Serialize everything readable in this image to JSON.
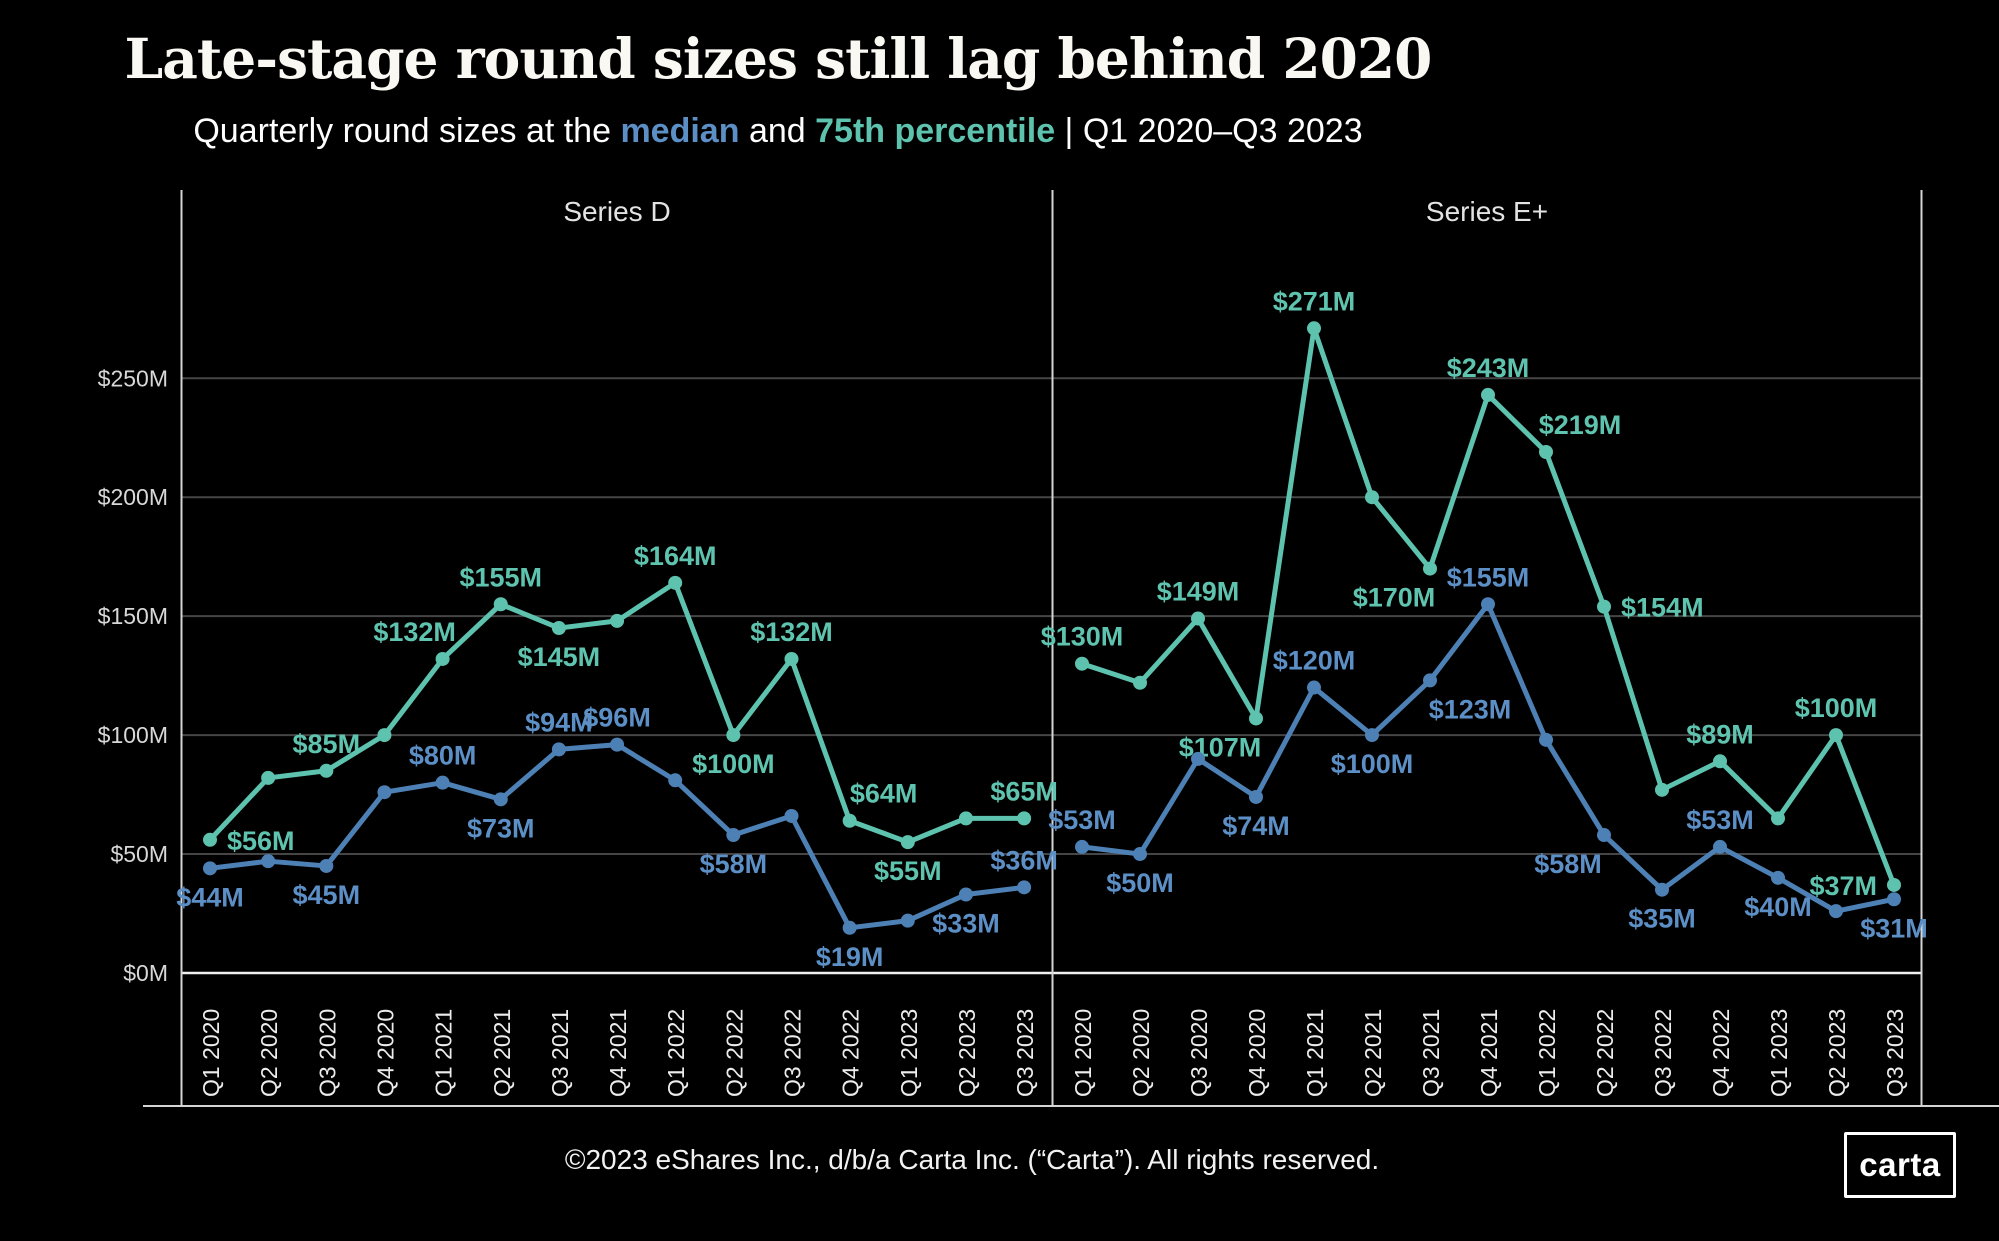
{
  "header": {
    "title": "Late-stage round sizes still lag behind 2020",
    "subtitle_prefix": "Quarterly round sizes at the ",
    "subtitle_median_word": "median",
    "subtitle_and": " and ",
    "subtitle_p75_word": "75th percentile",
    "subtitle_suffix": " | Q1 2020–Q3 2023"
  },
  "colors": {
    "median_line": "#4D81B5",
    "median_label": "#5C8FC5",
    "p75_line": "#5EC3AE",
    "p75_label": "#5FC4AF",
    "grid": "#454545",
    "frame": "#D5D5D5",
    "baseline": "#F0F0F0",
    "y_tick_text": "#D8D8D8",
    "x_tick_text": "#ECECEC",
    "panel_title_text": "#E3E3E3",
    "background": "#000000"
  },
  "y_axis": {
    "tick_labels": [
      "$0M",
      "$50M",
      "$100M",
      "$150M",
      "$200M",
      "$250M"
    ],
    "tick_values": [
      0,
      50,
      100,
      150,
      200,
      250
    ],
    "ylim": [
      0,
      329
    ],
    "grid": "on"
  },
  "chart_data": [
    {
      "type": "line",
      "panel_title": "Series D",
      "categories": [
        "Q1 2020",
        "Q2 2020",
        "Q3 2020",
        "Q4 2020",
        "Q1 2021",
        "Q2 2021",
        "Q3 2021",
        "Q4 2021",
        "Q1 2022",
        "Q2 2022",
        "Q3 2022",
        "Q4 2022",
        "Q1 2023",
        "Q2 2023",
        "Q3 2023"
      ],
      "series": [
        {
          "name": "75th percentile",
          "values": [
            56,
            82,
            85,
            100,
            132,
            155,
            145,
            148,
            164,
            100,
            132,
            64,
            55,
            65,
            65
          ],
          "labels": [
            {
              "i": 0,
              "text": "$56M",
              "pos": "right"
            },
            {
              "i": 2,
              "text": "$85M",
              "pos": "above"
            },
            {
              "i": 4,
              "text": "$132M",
              "pos": "above-left"
            },
            {
              "i": 5,
              "text": "$155M",
              "pos": "above"
            },
            {
              "i": 6,
              "text": "$145M",
              "pos": "below"
            },
            {
              "i": 8,
              "text": "$164M",
              "pos": "above"
            },
            {
              "i": 9,
              "text": "$100M",
              "pos": "below"
            },
            {
              "i": 10,
              "text": "$132M",
              "pos": "above"
            },
            {
              "i": 11,
              "text": "$64M",
              "pos": "above-right"
            },
            {
              "i": 12,
              "text": "$55M",
              "pos": "below"
            },
            {
              "i": 14,
              "text": "$65M",
              "pos": "above"
            }
          ]
        },
        {
          "name": "median",
          "values": [
            44,
            47,
            45,
            76,
            80,
            73,
            94,
            96,
            81,
            58,
            66,
            19,
            22,
            33,
            36
          ],
          "labels": [
            {
              "i": 0,
              "text": "$44M",
              "pos": "below"
            },
            {
              "i": 2,
              "text": "$45M",
              "pos": "below"
            },
            {
              "i": 4,
              "text": "$80M",
              "pos": "above"
            },
            {
              "i": 5,
              "text": "$73M",
              "pos": "below"
            },
            {
              "i": 6,
              "text": "$94M",
              "pos": "above"
            },
            {
              "i": 7,
              "text": "$96M",
              "pos": "above"
            },
            {
              "i": 9,
              "text": "$58M",
              "pos": "below"
            },
            {
              "i": 11,
              "text": "$19M",
              "pos": "below"
            },
            {
              "i": 13,
              "text": "$33M",
              "pos": "below"
            },
            {
              "i": 14,
              "text": "$36M",
              "pos": "above"
            }
          ]
        }
      ]
    },
    {
      "type": "line",
      "panel_title": "Series E+",
      "categories": [
        "Q1 2020",
        "Q2 2020",
        "Q3 2020",
        "Q4 2020",
        "Q1 2021",
        "Q2 2021",
        "Q3 2021",
        "Q4 2021",
        "Q1 2022",
        "Q2 2022",
        "Q3 2022",
        "Q4 2022",
        "Q1 2023",
        "Q2 2023",
        "Q3 2023"
      ],
      "series": [
        {
          "name": "75th percentile",
          "values": [
            130,
            122,
            149,
            107,
            271,
            200,
            170,
            243,
            219,
            154,
            77,
            89,
            65,
            100,
            37
          ],
          "labels": [
            {
              "i": 0,
              "text": "$130M",
              "pos": "above"
            },
            {
              "i": 2,
              "text": "$149M",
              "pos": "above"
            },
            {
              "i": 3,
              "text": "$107M",
              "pos": "below-left"
            },
            {
              "i": 4,
              "text": "$271M",
              "pos": "above"
            },
            {
              "i": 6,
              "text": "$170M",
              "pos": "below-left"
            },
            {
              "i": 7,
              "text": "$243M",
              "pos": "above"
            },
            {
              "i": 8,
              "text": "$219M",
              "pos": "above-right"
            },
            {
              "i": 9,
              "text": "$154M",
              "pos": "right"
            },
            {
              "i": 11,
              "text": "$89M",
              "pos": "above"
            },
            {
              "i": 13,
              "text": "$100M",
              "pos": "above"
            },
            {
              "i": 14,
              "text": "$37M",
              "pos": "left"
            }
          ]
        },
        {
          "name": "median",
          "values": [
            53,
            50,
            90,
            74,
            120,
            100,
            123,
            155,
            98,
            58,
            35,
            53,
            40,
            26,
            31
          ],
          "labels": [
            {
              "i": 0,
              "text": "$53M",
              "pos": "above"
            },
            {
              "i": 1,
              "text": "$50M",
              "pos": "below"
            },
            {
              "i": 3,
              "text": "$74M",
              "pos": "below"
            },
            {
              "i": 4,
              "text": "$120M",
              "pos": "above"
            },
            {
              "i": 5,
              "text": "$100M",
              "pos": "below"
            },
            {
              "i": 6,
              "text": "$123M",
              "pos": "below-right"
            },
            {
              "i": 7,
              "text": "$155M",
              "pos": "above"
            },
            {
              "i": 9,
              "text": "$58M",
              "pos": "below-left"
            },
            {
              "i": 10,
              "text": "$35M",
              "pos": "below"
            },
            {
              "i": 11,
              "text": "$53M",
              "pos": "above"
            },
            {
              "i": 12,
              "text": "$40M",
              "pos": "below"
            },
            {
              "i": 14,
              "text": "$31M",
              "pos": "below"
            }
          ]
        }
      ]
    }
  ],
  "footer": {
    "copyright": "©2023 eShares Inc., d/b/a Carta Inc. (“Carta”). All rights reserved.",
    "logo_text": "carta"
  }
}
